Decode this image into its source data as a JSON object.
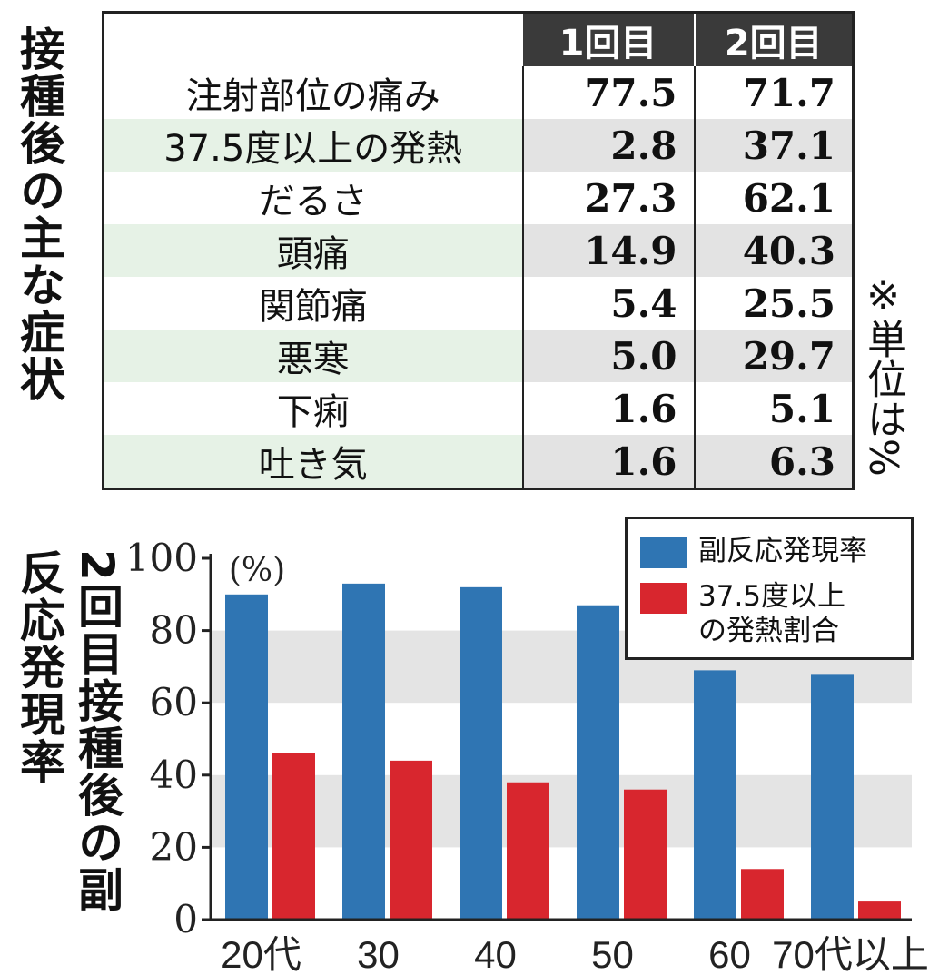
{
  "titles": {
    "top": "接種後の主な症状",
    "unit_note": "※単位は%",
    "bottom_line1": "2回目接種後の副",
    "bottom_line2": "反応発現率"
  },
  "table": {
    "headers": [
      "1回目",
      "2回目"
    ],
    "rows": [
      {
        "name": "注射部位の痛み",
        "v1": "77.5",
        "v2": "71.7"
      },
      {
        "name": "37.5度以上の発熱",
        "v1": "2.8",
        "v2": "37.1"
      },
      {
        "name": "だるさ",
        "v1": "27.3",
        "v2": "62.1"
      },
      {
        "name": "頭痛",
        "v1": "14.9",
        "v2": "40.3"
      },
      {
        "name": "関節痛",
        "v1": "5.4",
        "v2": "25.5"
      },
      {
        "name": "悪寒",
        "v1": "5.0",
        "v2": "29.7"
      },
      {
        "name": "下痢",
        "v1": "1.6",
        "v2": "5.1"
      },
      {
        "name": "吐き気",
        "v1": "1.6",
        "v2": "6.3"
      }
    ]
  },
  "chart_data": {
    "type": "bar",
    "categories": [
      "20代",
      "30",
      "40",
      "50",
      "60",
      "70代以上"
    ],
    "series": [
      {
        "name": "副反応発現率",
        "color": "#2f75b3",
        "values": [
          90,
          93,
          92,
          87,
          69,
          68
        ]
      },
      {
        "name": "37.5度以上\nの発熱割合",
        "color": "#d8262e",
        "values": [
          46,
          44,
          38,
          36,
          14,
          5
        ]
      }
    ],
    "ylim": [
      0,
      100
    ],
    "yticks": [
      "0",
      "20",
      "40",
      "60",
      "80",
      "100"
    ],
    "ylabel": "(%)",
    "grid": "alternating-bands",
    "legend_position": "top-right"
  },
  "colors": {
    "band": "#e4e4e4",
    "alt_row_name": "#e6f2e6",
    "header_bg": "#3a3a3a"
  }
}
